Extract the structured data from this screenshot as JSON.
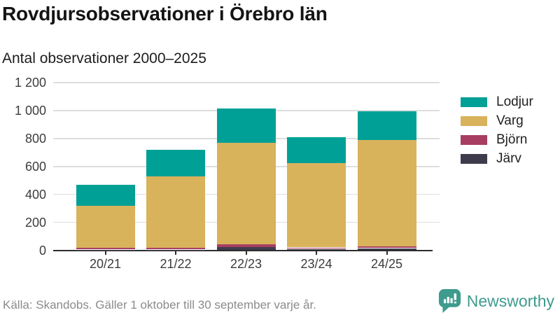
{
  "header": {
    "title": "Rovdjursobservationer i Örebro län",
    "subtitle": "Antal observationer 2000–2025"
  },
  "chart_data": {
    "type": "bar",
    "stacked": true,
    "title": "Rovdjursobservationer i Örebro län",
    "subtitle": "Antal observationer 2000–2025",
    "categories": [
      "20/21",
      "21/22",
      "22/23",
      "23/24",
      "24/25"
    ],
    "series": [
      {
        "name": "Lodjur",
        "color": "#00a096",
        "values": [
          150,
          190,
          245,
          185,
          205
        ]
      },
      {
        "name": "Varg",
        "color": "#d9b25c",
        "values": [
          300,
          510,
          725,
          605,
          760
        ]
      },
      {
        "name": "Björn",
        "color": "#a73e62",
        "values": [
          15,
          15,
          20,
          10,
          15
        ]
      },
      {
        "name": "Järv",
        "color": "#3e3b4d",
        "values": [
          5,
          5,
          25,
          10,
          15
        ]
      }
    ],
    "stack_order_bottom_to_top": [
      "Järv",
      "Björn",
      "Varg",
      "Lodjur"
    ],
    "totals": [
      470,
      720,
      1015,
      810,
      995
    ],
    "xlabel": "",
    "ylabel": "Antal observationer",
    "ylim": [
      0,
      1200
    ],
    "yticks": [
      {
        "value": 0,
        "label": "0"
      },
      {
        "value": 200,
        "label": "200"
      },
      {
        "value": 400,
        "label": "400"
      },
      {
        "value": 600,
        "label": "600"
      },
      {
        "value": 800,
        "label": "800"
      },
      {
        "value": 1000,
        "label": "1 000"
      },
      {
        "value": 1200,
        "label": "1 200"
      }
    ],
    "grid": "horizontal",
    "legend_position": "right"
  },
  "footer": {
    "source": "Källa: Skandobs. Gäller 1 oktober till 30 september varje år."
  },
  "branding": {
    "name": "Newsworthy",
    "color": "#3e9b8d",
    "icon": "newsworthy-chart-bubble-icon"
  }
}
